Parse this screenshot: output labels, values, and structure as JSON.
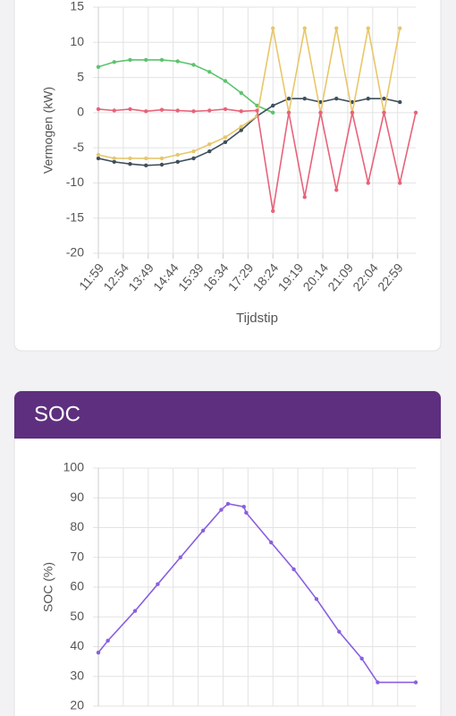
{
  "chart_data": [
    {
      "type": "line",
      "ylabel": "Vermogen (kW)",
      "xlabel": "Tijdstip",
      "xlim": [
        719,
        1419
      ],
      "xticks": [
        {
          "value": 719,
          "label": "11:59"
        },
        {
          "value": 774,
          "label": "12:54"
        },
        {
          "value": 829,
          "label": "13:49"
        },
        {
          "value": 884,
          "label": "14:44"
        },
        {
          "value": 939,
          "label": "15:39"
        },
        {
          "value": 994,
          "label": "16:34"
        },
        {
          "value": 1049,
          "label": "17:29"
        },
        {
          "value": 1104,
          "label": "18:24"
        },
        {
          "value": 1159,
          "label": "19:19"
        },
        {
          "value": 1214,
          "label": "20:14"
        },
        {
          "value": 1269,
          "label": "21:09"
        },
        {
          "value": 1324,
          "label": "22:04"
        },
        {
          "value": 1379,
          "label": "22:59"
        }
      ],
      "ylim": [
        -20,
        15
      ],
      "yticks": [
        -20,
        -15,
        -10,
        -5,
        0,
        5,
        10,
        15
      ],
      "grid": true,
      "x": [
        719,
        754,
        789,
        824,
        859,
        894,
        929,
        964,
        999,
        1034,
        1069,
        1104,
        1139,
        1174,
        1209,
        1244,
        1279,
        1314,
        1349,
        1384,
        1419
      ],
      "series": [
        {
          "color": "#5cc46e",
          "values": [
            6.5,
            7.2,
            7.5,
            7.5,
            7.5,
            7.3,
            6.8,
            5.8,
            4.5,
            2.8,
            1,
            0,
            null,
            null,
            null,
            null,
            null,
            null,
            null,
            null,
            null
          ]
        },
        {
          "color": "#3d4f5c",
          "values": [
            -6.5,
            -7,
            -7.3,
            -7.5,
            -7.4,
            -7,
            -6.5,
            -5.5,
            -4.2,
            -2.5,
            -0.5,
            1,
            2,
            2,
            1.5,
            2,
            1.5,
            2,
            2,
            1.5,
            null
          ]
        },
        {
          "color": "#e8c76a",
          "values": [
            -6,
            -6.5,
            -6.5,
            -6.5,
            -6.5,
            -6,
            -5.5,
            -4.5,
            -3.5,
            -2,
            -0.5,
            12,
            0,
            12,
            0,
            12,
            0,
            12,
            0,
            12,
            null
          ]
        },
        {
          "color": "#e8637a",
          "values": [
            0.5,
            0.3,
            0.5,
            0.2,
            0.4,
            0.3,
            0.2,
            0.3,
            0.5,
            0.2,
            0.3,
            -14,
            0,
            -12,
            0,
            -11,
            0,
            -10,
            0,
            -10,
            0
          ]
        }
      ]
    },
    {
      "type": "line",
      "title": "SOC",
      "ylabel": "SOC (%)",
      "xlim": [
        719,
        1419
      ],
      "ylim": [
        20,
        100
      ],
      "yticks": [
        20,
        30,
        40,
        50,
        60,
        70,
        80,
        90,
        100
      ],
      "grid": true,
      "x": [
        719,
        740,
        800,
        850,
        900,
        950,
        990,
        1005,
        1040,
        1045,
        1100,
        1150,
        1200,
        1250,
        1300,
        1335,
        1419
      ],
      "series": [
        {
          "color": "#8a5fe0",
          "values": [
            38,
            42,
            52,
            61,
            70,
            79,
            86,
            88,
            87,
            85,
            75,
            66,
            56,
            45,
            36,
            28,
            28
          ]
        }
      ]
    }
  ]
}
